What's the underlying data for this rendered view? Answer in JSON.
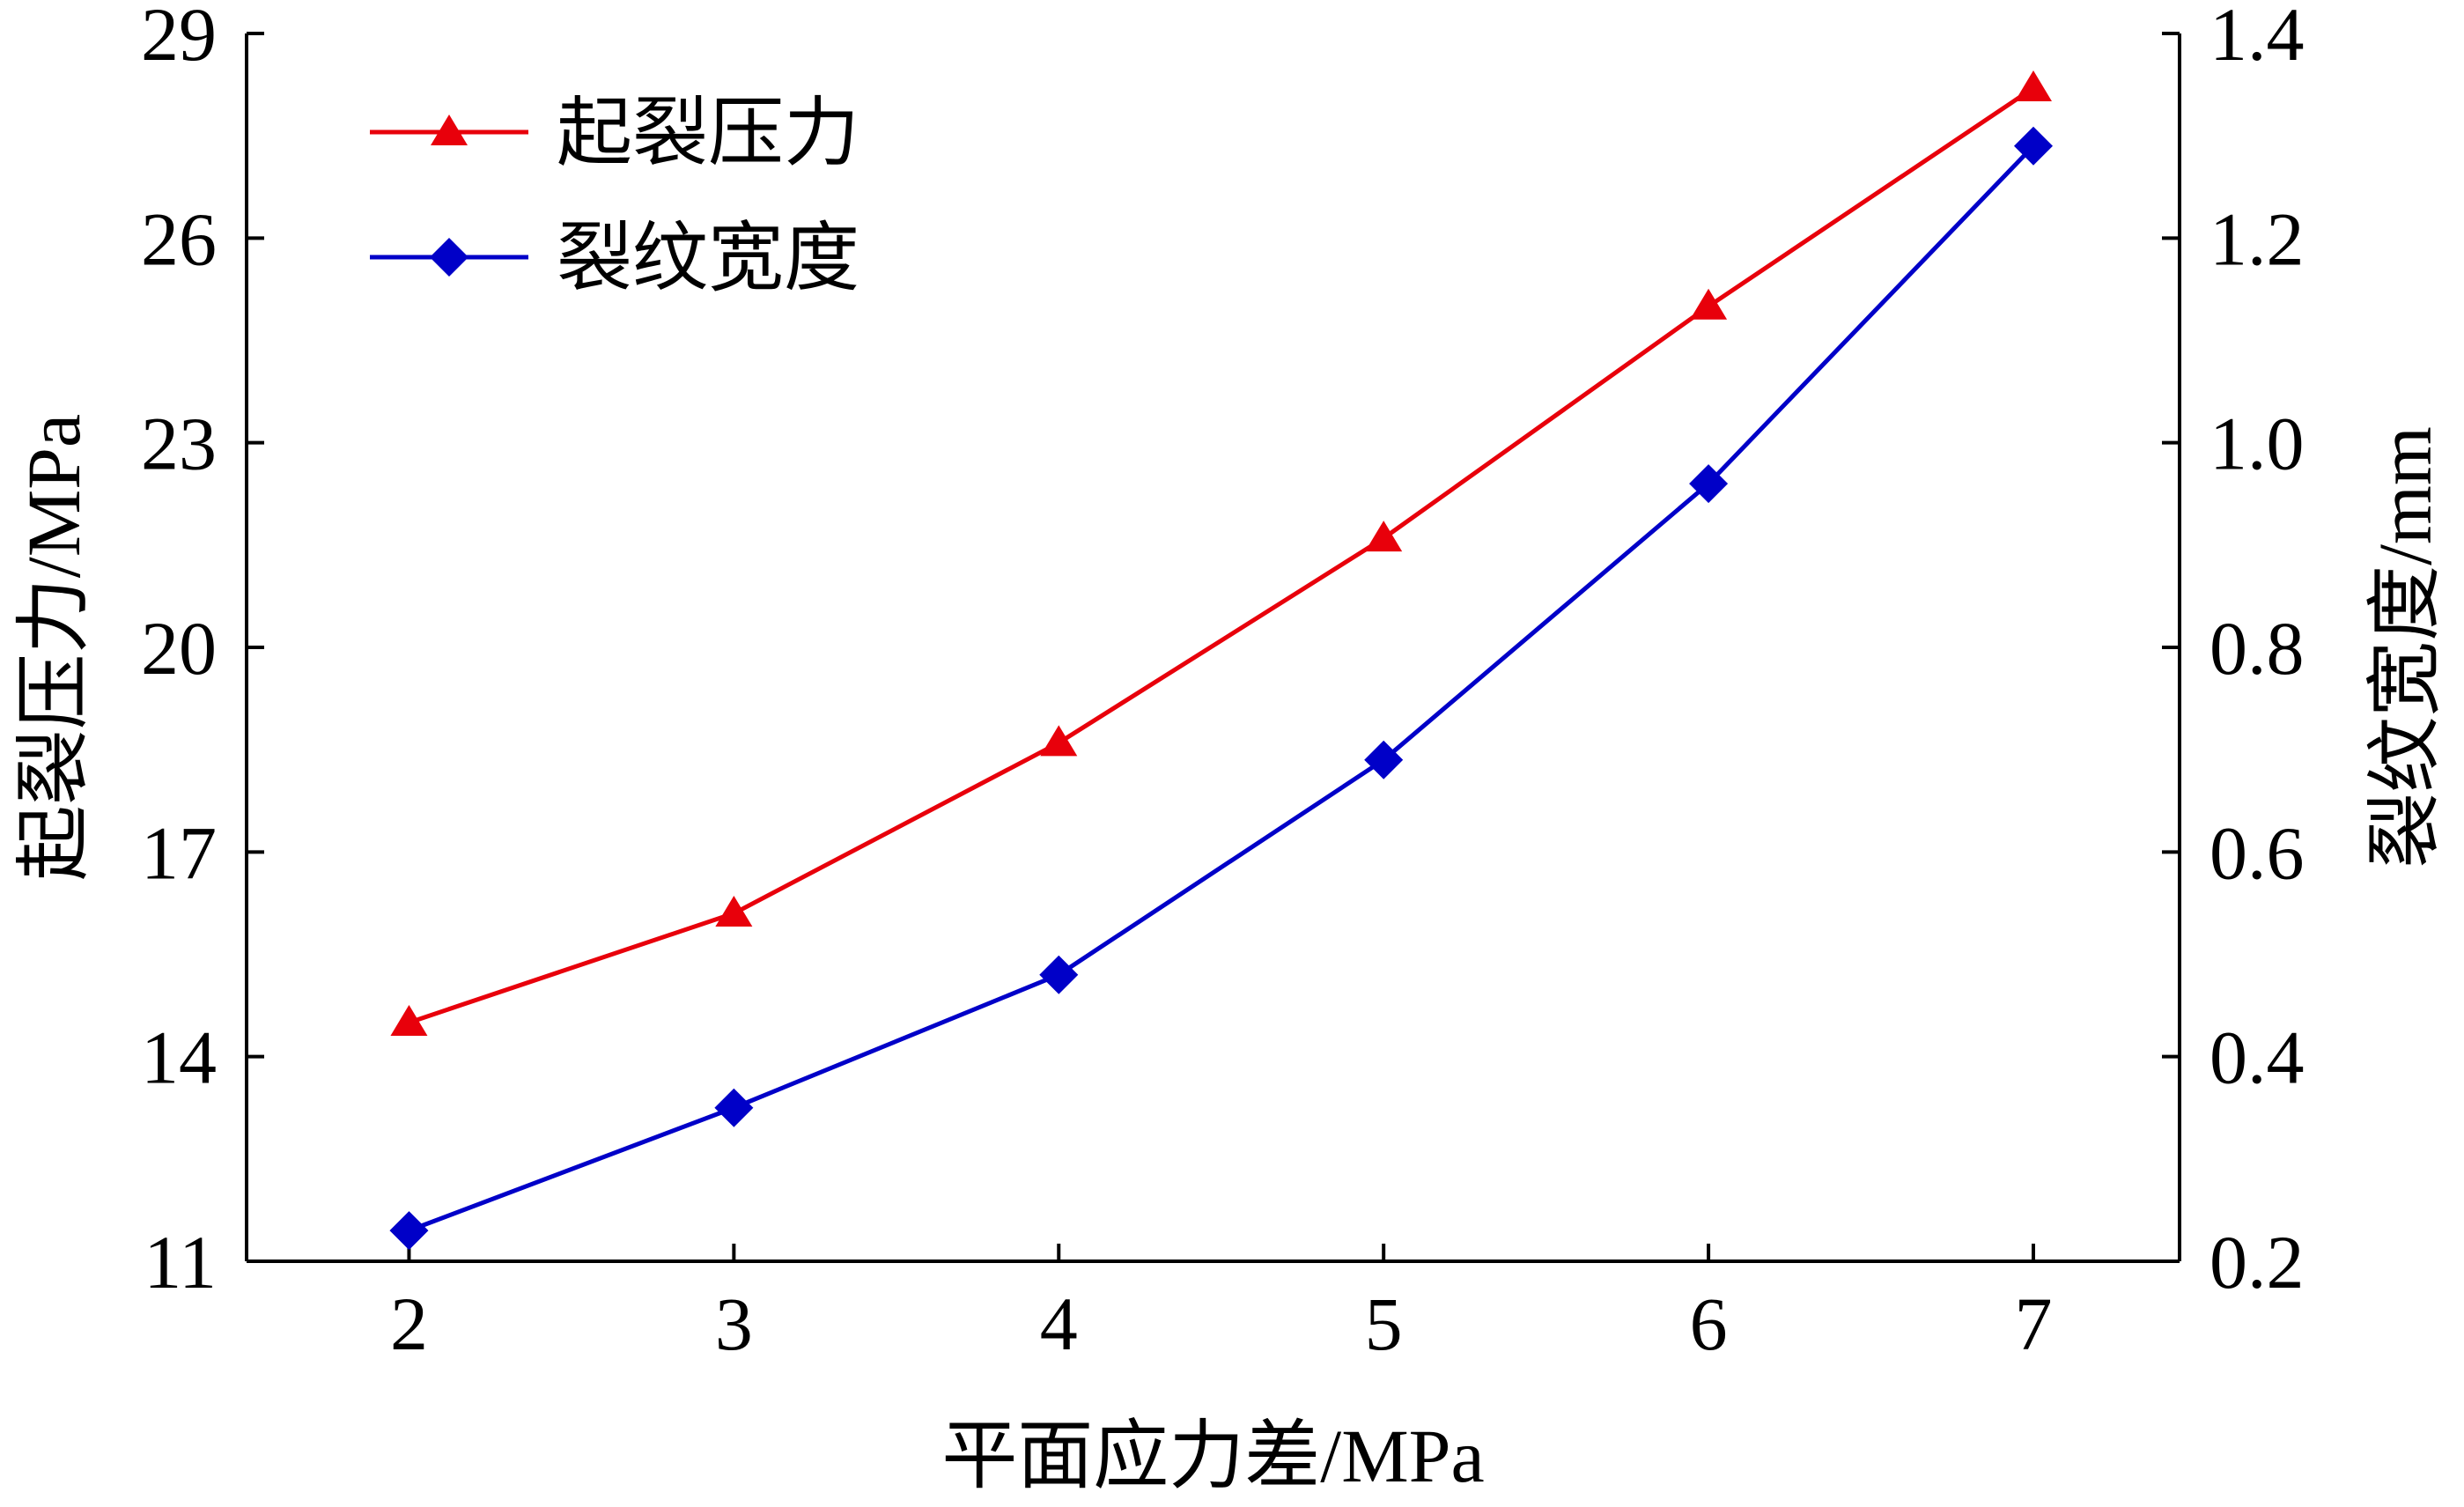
{
  "chart_data": {
    "type": "line",
    "title": "",
    "xlabel": "平面应力差/MPa",
    "ylabel_left": "起裂压力/MPa",
    "ylabel_right": "裂纹宽度/mm",
    "x": [
      2,
      3,
      4,
      5,
      6,
      7
    ],
    "x_ticks": [
      "2",
      "3",
      "4",
      "5",
      "6",
      "7"
    ],
    "xlim": [
      1.5,
      7.45
    ],
    "ylim_left": [
      11,
      29
    ],
    "ylim_right": [
      0.2,
      1.4
    ],
    "y_ticks_left": [
      "11",
      "14",
      "17",
      "20",
      "23",
      "26",
      "29"
    ],
    "y_ticks_right": [
      "0.2",
      "0.4",
      "0.6",
      "0.8",
      "1.0",
      "1.2",
      "1.4"
    ],
    "legend_position": "top-left",
    "grid": false,
    "series": [
      {
        "name": "起裂压力",
        "axis": "left",
        "color": "#e8000b",
        "marker": "triangle",
        "values": [
          14.5,
          16.1,
          18.6,
          21.6,
          25.0,
          28.2
        ]
      },
      {
        "name": "裂纹宽度",
        "axis": "right",
        "color": "#0000c8",
        "marker": "diamond",
        "values": [
          0.23,
          0.35,
          0.48,
          0.69,
          0.96,
          1.29
        ]
      }
    ]
  }
}
